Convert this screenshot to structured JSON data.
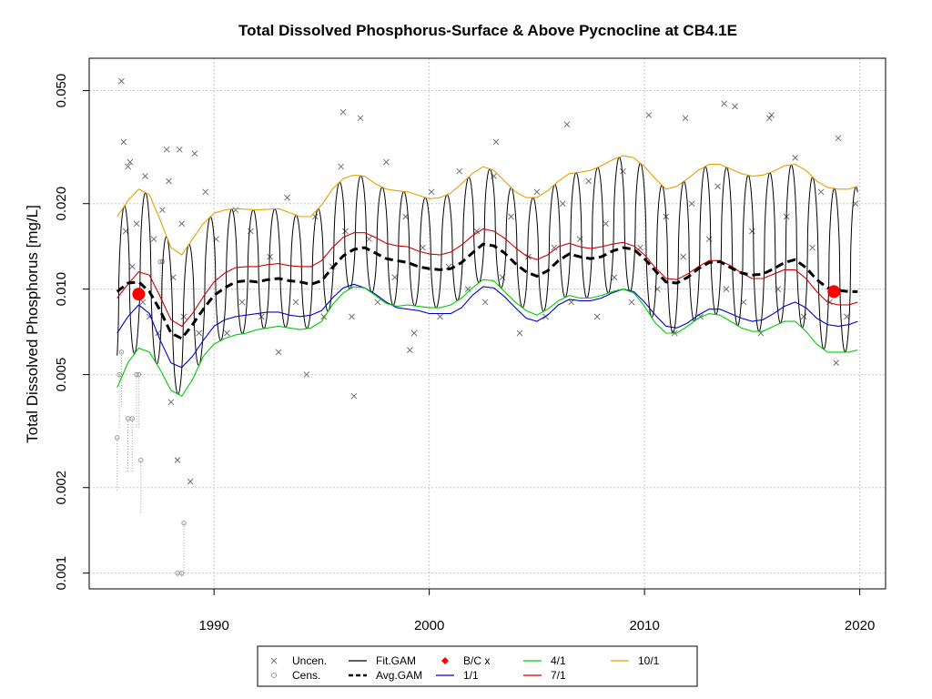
{
  "chart_data": {
    "type": "line",
    "title": "Total Dissolved Phosphorus-Surface & Above Pycnocline at CB4.1E",
    "xlabel": "",
    "ylabel": "Total Dissolved Phosphorus [mg/L]",
    "y_scale": "log",
    "xlim": [
      1984.2,
      2021.2
    ],
    "ylim": [
      0.00088,
      0.065
    ],
    "x_ticks": [
      1990,
      2000,
      2010,
      2020
    ],
    "x_tick_labels": [
      "1990",
      "2000",
      "2010",
      "2020"
    ],
    "y_ticks": [
      0.001,
      0.002,
      0.005,
      0.01,
      0.02,
      0.05
    ],
    "y_tick_labels": [
      "0.001",
      "0.002",
      "0.005",
      "0.010",
      "0.020",
      "0.050"
    ],
    "grid": true,
    "legend_position": "bottom-center",
    "legend": [
      {
        "label": "Uncen.",
        "symbol": "x",
        "color": "#707070"
      },
      {
        "label": "Cens.",
        "symbol": "o",
        "color": "#9a9a9a"
      },
      {
        "label": "Fit.GAM",
        "symbol": "line",
        "color": "#000000"
      },
      {
        "label": "Avg.GAM",
        "symbol": "dashed-line",
        "color": "#000000"
      },
      {
        "label": "B/C x",
        "symbol": "diamond",
        "color": "#ff0000"
      },
      {
        "label": "1/1",
        "symbol": "line",
        "color": "#0000cc"
      },
      {
        "label": "4/1",
        "symbol": "line",
        "color": "#00cc00"
      },
      {
        "label": "7/1",
        "symbol": "line",
        "color": "#cc0000"
      },
      {
        "label": "10/1",
        "symbol": "line",
        "color": "#e6a000"
      }
    ],
    "colors": {
      "uncensored": "#707070",
      "censored": "#9a9a9a",
      "fit_gam": "#000000",
      "avg_gam": "#000000",
      "bc": "#ff0000",
      "jan1": "#0000cc",
      "apr1": "#00cc00",
      "jul1": "#cc0000",
      "oct1": "#e6a000",
      "grid": "#c8c8c8"
    },
    "series": [
      {
        "name": "Avg.GAM",
        "x": [
          1985.5,
          1986,
          1986.5,
          1987,
          1987.5,
          1988,
          1988.5,
          1989,
          1989.5,
          1990,
          1990.5,
          1991,
          1991.5,
          1992,
          1992.5,
          1993,
          1993.5,
          1994,
          1994.5,
          1995,
          1995.5,
          1996,
          1996.5,
          1997,
          1997.5,
          1998,
          1998.5,
          1999,
          1999.5,
          2000,
          2000.5,
          2001,
          2001.5,
          2002,
          2002.5,
          2003,
          2003.5,
          2004,
          2004.5,
          2005,
          2005.5,
          2006,
          2006.5,
          2007,
          2007.5,
          2008,
          2008.5,
          2009,
          2009.5,
          2010,
          2010.5,
          2011,
          2011.5,
          2012,
          2012.5,
          2013,
          2013.5,
          2014,
          2014.5,
          2015,
          2015.5,
          2016,
          2016.5,
          2017,
          2017.5,
          2018,
          2018.5,
          2019,
          2019.5,
          2019.9
        ],
        "y": [
          0.0098,
          0.0105,
          0.0106,
          0.0098,
          0.0084,
          0.007,
          0.0067,
          0.0075,
          0.0085,
          0.0095,
          0.0101,
          0.0106,
          0.0107,
          0.0106,
          0.0108,
          0.0109,
          0.0107,
          0.0106,
          0.0104,
          0.0107,
          0.0119,
          0.0131,
          0.0138,
          0.014,
          0.0134,
          0.0128,
          0.0126,
          0.0124,
          0.012,
          0.0118,
          0.0117,
          0.0118,
          0.0124,
          0.0134,
          0.0144,
          0.0142,
          0.0134,
          0.0123,
          0.0115,
          0.0111,
          0.0116,
          0.0126,
          0.0133,
          0.013,
          0.0128,
          0.013,
          0.0136,
          0.014,
          0.0138,
          0.0128,
          0.0116,
          0.0106,
          0.0105,
          0.011,
          0.0118,
          0.0124,
          0.0125,
          0.0119,
          0.0114,
          0.0112,
          0.0113,
          0.0118,
          0.0124,
          0.0127,
          0.0119,
          0.0108,
          0.0101,
          0.0099,
          0.0098,
          0.0098
        ]
      },
      {
        "name": "10/1",
        "x": [
          1985.5,
          1986,
          1986.5,
          1987,
          1987.5,
          1988,
          1988.5,
          1989,
          1989.5,
          1990,
          1990.5,
          1991,
          1991.5,
          1992,
          1992.5,
          1993,
          1993.5,
          1994,
          1994.5,
          1995,
          1995.5,
          1996,
          1996.5,
          1997,
          1997.5,
          1998,
          1998.5,
          1999,
          1999.5,
          2000,
          2000.5,
          2001,
          2001.5,
          2002,
          2002.5,
          2003,
          2003.5,
          2004,
          2004.5,
          2005,
          2005.5,
          2006,
          2006.5,
          2007,
          2007.5,
          2008,
          2008.5,
          2009,
          2009.5,
          2010,
          2010.5,
          2011,
          2011.5,
          2012,
          2012.5,
          2013,
          2013.5,
          2014,
          2014.5,
          2015,
          2015.5,
          2016,
          2016.5,
          2017,
          2017.5,
          2018,
          2018.5,
          2019,
          2019.5,
          2019.9
        ],
        "y": [
          0.018,
          0.0205,
          0.0225,
          0.0215,
          0.0175,
          0.014,
          0.0132,
          0.015,
          0.017,
          0.0185,
          0.019,
          0.0192,
          0.0191,
          0.019,
          0.0191,
          0.0192,
          0.0186,
          0.018,
          0.018,
          0.0198,
          0.0225,
          0.0245,
          0.0252,
          0.025,
          0.0235,
          0.0225,
          0.0222,
          0.022,
          0.0214,
          0.0208,
          0.021,
          0.0218,
          0.0235,
          0.0255,
          0.027,
          0.0262,
          0.024,
          0.022,
          0.021,
          0.021,
          0.0222,
          0.024,
          0.0255,
          0.0258,
          0.0262,
          0.0272,
          0.0285,
          0.0295,
          0.029,
          0.027,
          0.0245,
          0.0225,
          0.023,
          0.0245,
          0.0262,
          0.0275,
          0.0275,
          0.0265,
          0.0255,
          0.025,
          0.0252,
          0.026,
          0.0272,
          0.0275,
          0.0262,
          0.024,
          0.0228,
          0.0225,
          0.0225,
          0.023
        ]
      },
      {
        "name": "7/1",
        "x": [
          1985.5,
          1986,
          1986.5,
          1987,
          1987.5,
          1988,
          1988.5,
          1989,
          1989.5,
          1990,
          1990.5,
          1991,
          1991.5,
          1992,
          1992.5,
          1993,
          1993.5,
          1994,
          1994.5,
          1995,
          1995.5,
          1996,
          1996.5,
          1997,
          1997.5,
          1998,
          1998.5,
          1999,
          1999.5,
          2000,
          2000.5,
          2001,
          2001.5,
          2002,
          2002.5,
          2003,
          2003.5,
          2004,
          2004.5,
          2005,
          2005.5,
          2006,
          2006.5,
          2007,
          2007.5,
          2008,
          2008.5,
          2009,
          2009.5,
          2010,
          2010.5,
          2011,
          2011.5,
          2012,
          2012.5,
          2013,
          2013.5,
          2014,
          2014.5,
          2015,
          2015.5,
          2016,
          2016.5,
          2017,
          2017.5,
          2018,
          2018.5,
          2019,
          2019.5,
          2019.9
        ],
        "y": [
          0.0093,
          0.0104,
          0.0115,
          0.0112,
          0.0094,
          0.0078,
          0.0074,
          0.0082,
          0.0094,
          0.0106,
          0.0114,
          0.0119,
          0.012,
          0.012,
          0.0122,
          0.0123,
          0.0121,
          0.012,
          0.012,
          0.0126,
          0.014,
          0.0152,
          0.0158,
          0.0158,
          0.0152,
          0.0145,
          0.0142,
          0.0141,
          0.0136,
          0.0133,
          0.0132,
          0.0135,
          0.0143,
          0.0154,
          0.0163,
          0.016,
          0.0151,
          0.014,
          0.0131,
          0.0127,
          0.0132,
          0.0141,
          0.0145,
          0.0141,
          0.0139,
          0.0141,
          0.0144,
          0.0146,
          0.0142,
          0.0132,
          0.0119,
          0.0109,
          0.0108,
          0.0113,
          0.012,
          0.0126,
          0.0126,
          0.0121,
          0.0114,
          0.0109,
          0.0109,
          0.0113,
          0.0117,
          0.0117,
          0.0109,
          0.0098,
          0.009,
          0.0088,
          0.0088,
          0.009
        ]
      },
      {
        "name": "1/1",
        "x": [
          1985.5,
          1986,
          1986.5,
          1987,
          1987.5,
          1988,
          1988.5,
          1989,
          1989.5,
          1990,
          1990.5,
          1991,
          1991.5,
          1992,
          1992.5,
          1993,
          1993.5,
          1994,
          1994.5,
          1995,
          1995.5,
          1996,
          1996.5,
          1997,
          1997.5,
          1998,
          1998.5,
          1999,
          1999.5,
          2000,
          2000.5,
          2001,
          2001.5,
          2002,
          2002.5,
          2003,
          2003.5,
          2004,
          2004.5,
          2005,
          2005.5,
          2006,
          2006.5,
          2007,
          2007.5,
          2008,
          2008.5,
          2009,
          2009.5,
          2010,
          2010.5,
          2011,
          2011.5,
          2012,
          2012.5,
          2013,
          2013.5,
          2014,
          2014.5,
          2015,
          2015.5,
          2016,
          2016.5,
          2017,
          2017.5,
          2018,
          2018.5,
          2019,
          2019.5,
          2019.9
        ],
        "y": [
          0.007,
          0.008,
          0.0088,
          0.0082,
          0.0066,
          0.0055,
          0.0053,
          0.0058,
          0.0066,
          0.0074,
          0.0078,
          0.008,
          0.0081,
          0.0082,
          0.0083,
          0.0083,
          0.0081,
          0.008,
          0.0081,
          0.0084,
          0.0093,
          0.0101,
          0.0104,
          0.0101,
          0.0096,
          0.009,
          0.0086,
          0.0085,
          0.0084,
          0.0082,
          0.0082,
          0.0082,
          0.0086,
          0.0095,
          0.0102,
          0.0101,
          0.0094,
          0.0086,
          0.0079,
          0.0077,
          0.0081,
          0.0088,
          0.0092,
          0.0091,
          0.0091,
          0.0093,
          0.0097,
          0.01,
          0.0098,
          0.009,
          0.0081,
          0.0074,
          0.0073,
          0.0076,
          0.0081,
          0.0085,
          0.0085,
          0.0082,
          0.0079,
          0.0077,
          0.0078,
          0.0082,
          0.0087,
          0.009,
          0.0086,
          0.0079,
          0.0075,
          0.0074,
          0.0075,
          0.0077
        ]
      },
      {
        "name": "4/1",
        "x": [
          1985.5,
          1986,
          1986.5,
          1987,
          1987.5,
          1988,
          1988.5,
          1989,
          1989.5,
          1990,
          1990.5,
          1991,
          1991.5,
          1992,
          1992.5,
          1993,
          1993.5,
          1994,
          1994.5,
          1995,
          1995.5,
          1996,
          1996.5,
          1997,
          1997.5,
          1998,
          1998.5,
          1999,
          1999.5,
          2000,
          2000.5,
          2001,
          2001.5,
          2002,
          2002.5,
          2003,
          2003.5,
          2004,
          2004.5,
          2005,
          2005.5,
          2006,
          2006.5,
          2007,
          2007.5,
          2008,
          2008.5,
          2009,
          2009.5,
          2010,
          2010.5,
          2011,
          2011.5,
          2012,
          2012.5,
          2013,
          2013.5,
          2014,
          2014.5,
          2015,
          2015.5,
          2016,
          2016.5,
          2017,
          2017.5,
          2018,
          2018.5,
          2019,
          2019.5,
          2019.9
        ],
        "y": [
          0.0045,
          0.0055,
          0.0062,
          0.006,
          0.0052,
          0.0044,
          0.0042,
          0.0048,
          0.0058,
          0.0064,
          0.0067,
          0.0069,
          0.007,
          0.0072,
          0.0073,
          0.0074,
          0.0073,
          0.0072,
          0.0073,
          0.0077,
          0.0088,
          0.0097,
          0.0102,
          0.0101,
          0.0095,
          0.0089,
          0.0087,
          0.0088,
          0.0087,
          0.0086,
          0.0086,
          0.0088,
          0.0093,
          0.0101,
          0.0108,
          0.0107,
          0.0098,
          0.009,
          0.0084,
          0.0081,
          0.0085,
          0.0091,
          0.0095,
          0.0093,
          0.0093,
          0.0095,
          0.0098,
          0.01,
          0.0097,
          0.0087,
          0.0076,
          0.007,
          0.007,
          0.0074,
          0.0079,
          0.0082,
          0.0081,
          0.0077,
          0.0073,
          0.0071,
          0.0071,
          0.0074,
          0.0077,
          0.0077,
          0.0071,
          0.0064,
          0.006,
          0.006,
          0.006,
          0.0061
        ]
      }
    ],
    "seasonal_fit": {
      "name": "Fit.GAM",
      "peak_month": 0.82,
      "trough_month": 0.42,
      "x_start": 1985.5,
      "x_end": 2019.9
    },
    "bc_points": {
      "name": "B/C x",
      "x": [
        1986.5,
        2018.8
      ],
      "y": [
        0.0096,
        0.0098
      ]
    },
    "uncensored_points": {
      "name": "Uncen.",
      "x": [
        1985.7,
        1985.8,
        1985.9,
        1986.0,
        1986.2,
        1986.4,
        1986.7,
        1986.8,
        1987.0,
        1987.2,
        1987.4,
        1987.6,
        1987.8,
        1988.0,
        1988.1,
        1988.3,
        1988.5,
        1988.6,
        1988.9,
        1989.1,
        1989.3,
        1989.6,
        1990.1,
        1990.6,
        1991.0,
        1991.3,
        1991.7,
        1992.2,
        1992.6,
        1993.0,
        1993.4,
        1993.8,
        1994.3,
        1994.7,
        1995.1,
        1995.5,
        1995.9,
        1996.1,
        1996.4,
        1996.8,
        1997.2,
        1997.6,
        1998.0,
        1998.4,
        1998.9,
        1999.3,
        1999.7,
        2000.1,
        2000.5,
        2000.9,
        2001.4,
        2001.8,
        2002.2,
        2002.6,
        2003.0,
        2003.4,
        2003.8,
        2004.2,
        2004.6,
        2005.0,
        2005.4,
        2005.8,
        2006.2,
        2006.6,
        2007.0,
        2007.4,
        2007.8,
        2008.2,
        2008.6,
        2009.0,
        2009.4,
        2009.8,
        2010.2,
        2010.6,
        2011.0,
        2011.4,
        2011.8,
        2012.2,
        2012.6,
        2013.0,
        2013.4,
        2013.8,
        2014.2,
        2014.6,
        2015.0,
        2015.4,
        2015.8,
        2016.2,
        2016.6,
        2017.0,
        2017.4,
        2017.8,
        2018.2,
        2018.6,
        2019.0,
        2019.4,
        2019.8,
        1986.1,
        1987.9,
        1988.4,
        1996.0,
        2003.1,
        2013.7,
        2015.9,
        1996.5,
        1999.1,
        2006.4,
        2011.9,
        2018.9
      ],
      "y": [
        0.054,
        0.033,
        0.016,
        0.027,
        0.012,
        0.017,
        0.009,
        0.025,
        0.008,
        0.015,
        0.007,
        0.019,
        0.031,
        0.004,
        0.011,
        0.0025,
        0.017,
        0.008,
        0.0021,
        0.03,
        0.007,
        0.022,
        0.015,
        0.007,
        0.019,
        0.009,
        0.016,
        0.008,
        0.013,
        0.006,
        0.021,
        0.009,
        0.005,
        0.018,
        0.008,
        0.012,
        0.027,
        0.016,
        0.008,
        0.04,
        0.015,
        0.009,
        0.028,
        0.011,
        0.018,
        0.007,
        0.014,
        0.022,
        0.008,
        0.012,
        0.026,
        0.01,
        0.016,
        0.009,
        0.025,
        0.011,
        0.018,
        0.007,
        0.013,
        0.022,
        0.008,
        0.014,
        0.02,
        0.009,
        0.015,
        0.024,
        0.008,
        0.017,
        0.011,
        0.026,
        0.009,
        0.014,
        0.041,
        0.01,
        0.018,
        0.007,
        0.013,
        0.02,
        0.008,
        0.015,
        0.023,
        0.01,
        0.044,
        0.009,
        0.016,
        0.007,
        0.04,
        0.01,
        0.018,
        0.029,
        0.008,
        0.014,
        0.022,
        0.009,
        0.034,
        0.008,
        0.02,
        0.028,
        0.024,
        0.031,
        0.042,
        0.033,
        0.045,
        0.041,
        0.0042,
        0.0061,
        0.038,
        0.04,
        0.0055
      ]
    },
    "censored_points": {
      "name": "Cens.",
      "x": [
        1985.5,
        1985.6,
        1985.7,
        1986.0,
        1986.2,
        1986.4,
        1986.5,
        1986.6,
        1987.5,
        1987.6,
        1988.3,
        1988.5,
        1988.6
      ],
      "y": [
        0.003,
        0.005,
        0.006,
        0.0035,
        0.0035,
        0.005,
        0.005,
        0.0025,
        0.0125,
        0.0125,
        0.001,
        0.001,
        0.0015
      ]
    }
  }
}
